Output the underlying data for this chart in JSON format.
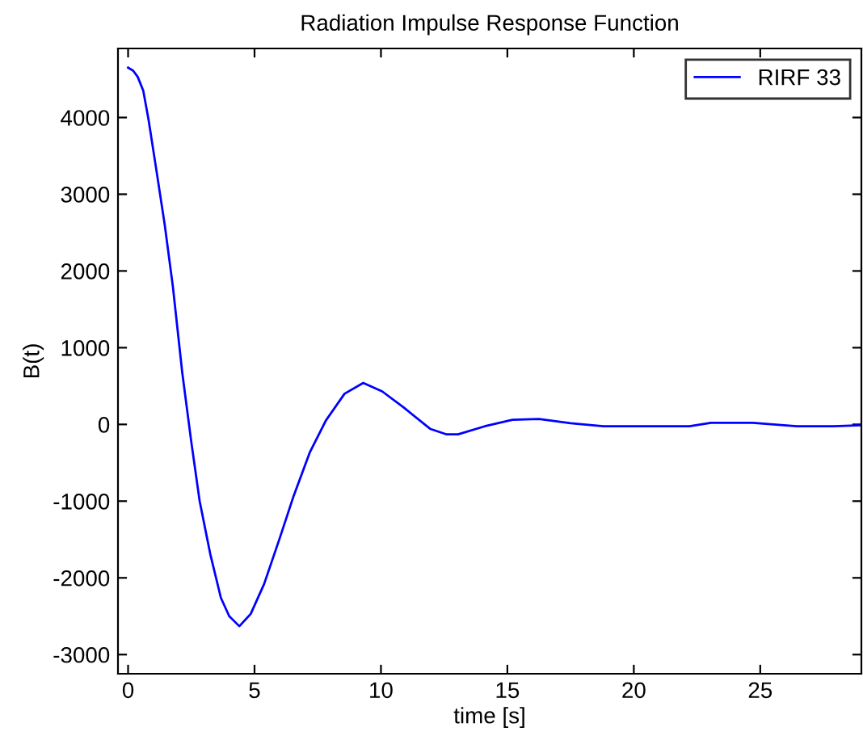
{
  "chart_data": {
    "type": "line",
    "title": "Radiation Impulse Response Function",
    "xlabel": "time [s]",
    "ylabel": "B(t)",
    "series": [
      {
        "name": "RIRF 33",
        "color": "#0000ff",
        "x": [
          0,
          0.2,
          0.38,
          0.6,
          0.81,
          1.13,
          1.45,
          1.77,
          2.14,
          2.5,
          2.83,
          3.25,
          3.67,
          4.0,
          4.4,
          4.85,
          5.38,
          6.0,
          6.55,
          7.18,
          7.82,
          8.56,
          9.3,
          10.05,
          10.9,
          11.96,
          12.6,
          13.05,
          14.1,
          15.2,
          16.25,
          17.5,
          18.8,
          20.5,
          22.2,
          23.05,
          24.7,
          26.45,
          27.9,
          29
        ],
        "values": [
          4650,
          4610,
          4530,
          4350,
          3970,
          3290,
          2600,
          1800,
          680,
          -230,
          -1000,
          -1690,
          -2260,
          -2500,
          -2630,
          -2470,
          -2080,
          -1480,
          -930,
          -370,
          50,
          400,
          540,
          430,
          220,
          -60,
          -130,
          -130,
          -25,
          60,
          70,
          15,
          -25,
          -25,
          -25,
          20,
          20,
          -25,
          -25,
          -10
        ]
      }
    ],
    "xlim": [
      -0.4,
      29
    ],
    "xticks": [
      0,
      5,
      10,
      15,
      20,
      25
    ],
    "ylim": [
      -3250,
      4900
    ],
    "yticks": [
      -3000,
      -2000,
      -1000,
      0,
      1000,
      2000,
      3000,
      4000
    ],
    "grid": false,
    "legend": "top right",
    "line_style": "solid",
    "marker": "none"
  }
}
